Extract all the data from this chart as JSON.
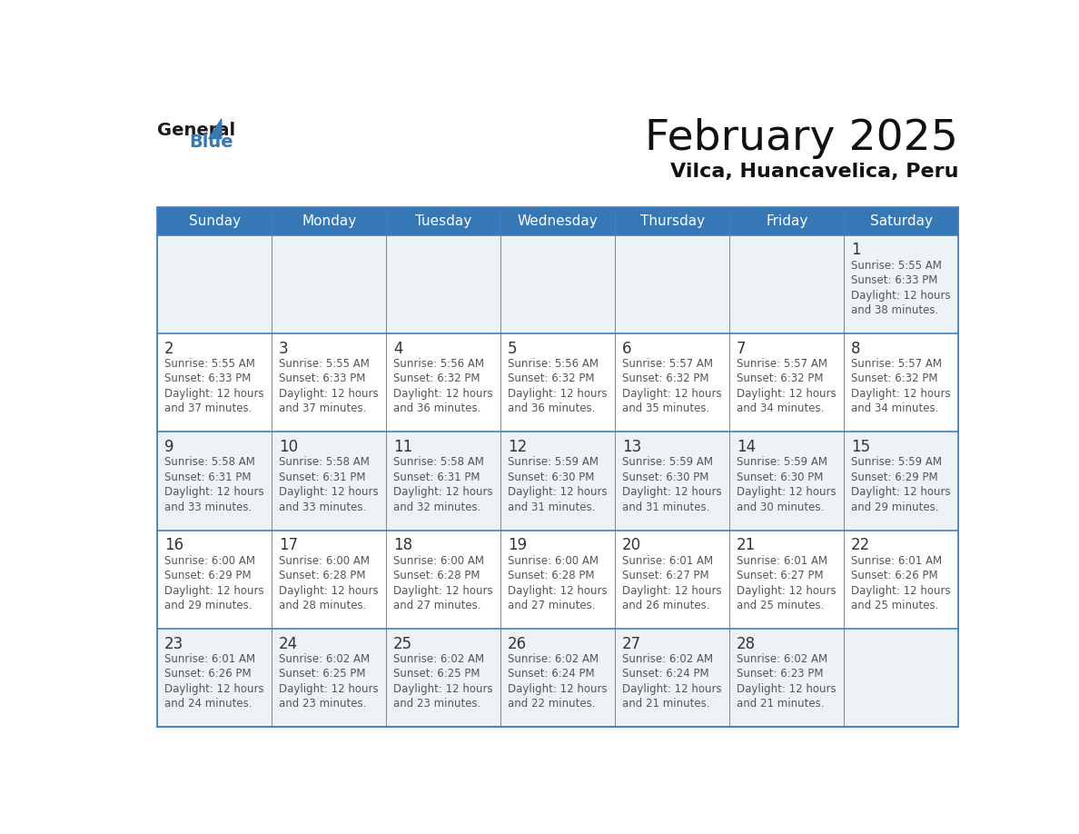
{
  "title": "February 2025",
  "subtitle": "Vilca, Huancavelica, Peru",
  "header_bg_color": "#3578b5",
  "header_text_color": "#ffffff",
  "row_bg_odd": "#edf2f7",
  "row_bg_even": "#ffffff",
  "border_color": "#4080bf",
  "day_names": [
    "Sunday",
    "Monday",
    "Tuesday",
    "Wednesday",
    "Thursday",
    "Friday",
    "Saturday"
  ],
  "days": [
    {
      "day": 1,
      "col": 6,
      "row": 0,
      "sunrise": "5:55 AM",
      "sunset": "6:33 PM",
      "daylight": "12 hours and 38 minutes."
    },
    {
      "day": 2,
      "col": 0,
      "row": 1,
      "sunrise": "5:55 AM",
      "sunset": "6:33 PM",
      "daylight": "12 hours and 37 minutes."
    },
    {
      "day": 3,
      "col": 1,
      "row": 1,
      "sunrise": "5:55 AM",
      "sunset": "6:33 PM",
      "daylight": "12 hours and 37 minutes."
    },
    {
      "day": 4,
      "col": 2,
      "row": 1,
      "sunrise": "5:56 AM",
      "sunset": "6:32 PM",
      "daylight": "12 hours and 36 minutes."
    },
    {
      "day": 5,
      "col": 3,
      "row": 1,
      "sunrise": "5:56 AM",
      "sunset": "6:32 PM",
      "daylight": "12 hours and 36 minutes."
    },
    {
      "day": 6,
      "col": 4,
      "row": 1,
      "sunrise": "5:57 AM",
      "sunset": "6:32 PM",
      "daylight": "12 hours and 35 minutes."
    },
    {
      "day": 7,
      "col": 5,
      "row": 1,
      "sunrise": "5:57 AM",
      "sunset": "6:32 PM",
      "daylight": "12 hours and 34 minutes."
    },
    {
      "day": 8,
      "col": 6,
      "row": 1,
      "sunrise": "5:57 AM",
      "sunset": "6:32 PM",
      "daylight": "12 hours and 34 minutes."
    },
    {
      "day": 9,
      "col": 0,
      "row": 2,
      "sunrise": "5:58 AM",
      "sunset": "6:31 PM",
      "daylight": "12 hours and 33 minutes."
    },
    {
      "day": 10,
      "col": 1,
      "row": 2,
      "sunrise": "5:58 AM",
      "sunset": "6:31 PM",
      "daylight": "12 hours and 33 minutes."
    },
    {
      "day": 11,
      "col": 2,
      "row": 2,
      "sunrise": "5:58 AM",
      "sunset": "6:31 PM",
      "daylight": "12 hours and 32 minutes."
    },
    {
      "day": 12,
      "col": 3,
      "row": 2,
      "sunrise": "5:59 AM",
      "sunset": "6:30 PM",
      "daylight": "12 hours and 31 minutes."
    },
    {
      "day": 13,
      "col": 4,
      "row": 2,
      "sunrise": "5:59 AM",
      "sunset": "6:30 PM",
      "daylight": "12 hours and 31 minutes."
    },
    {
      "day": 14,
      "col": 5,
      "row": 2,
      "sunrise": "5:59 AM",
      "sunset": "6:30 PM",
      "daylight": "12 hours and 30 minutes."
    },
    {
      "day": 15,
      "col": 6,
      "row": 2,
      "sunrise": "5:59 AM",
      "sunset": "6:29 PM",
      "daylight": "12 hours and 29 minutes."
    },
    {
      "day": 16,
      "col": 0,
      "row": 3,
      "sunrise": "6:00 AM",
      "sunset": "6:29 PM",
      "daylight": "12 hours and 29 minutes."
    },
    {
      "day": 17,
      "col": 1,
      "row": 3,
      "sunrise": "6:00 AM",
      "sunset": "6:28 PM",
      "daylight": "12 hours and 28 minutes."
    },
    {
      "day": 18,
      "col": 2,
      "row": 3,
      "sunrise": "6:00 AM",
      "sunset": "6:28 PM",
      "daylight": "12 hours and 27 minutes."
    },
    {
      "day": 19,
      "col": 3,
      "row": 3,
      "sunrise": "6:00 AM",
      "sunset": "6:28 PM",
      "daylight": "12 hours and 27 minutes."
    },
    {
      "day": 20,
      "col": 4,
      "row": 3,
      "sunrise": "6:01 AM",
      "sunset": "6:27 PM",
      "daylight": "12 hours and 26 minutes."
    },
    {
      "day": 21,
      "col": 5,
      "row": 3,
      "sunrise": "6:01 AM",
      "sunset": "6:27 PM",
      "daylight": "12 hours and 25 minutes."
    },
    {
      "day": 22,
      "col": 6,
      "row": 3,
      "sunrise": "6:01 AM",
      "sunset": "6:26 PM",
      "daylight": "12 hours and 25 minutes."
    },
    {
      "day": 23,
      "col": 0,
      "row": 4,
      "sunrise": "6:01 AM",
      "sunset": "6:26 PM",
      "daylight": "12 hours and 24 minutes."
    },
    {
      "day": 24,
      "col": 1,
      "row": 4,
      "sunrise": "6:02 AM",
      "sunset": "6:25 PM",
      "daylight": "12 hours and 23 minutes."
    },
    {
      "day": 25,
      "col": 2,
      "row": 4,
      "sunrise": "6:02 AM",
      "sunset": "6:25 PM",
      "daylight": "12 hours and 23 minutes."
    },
    {
      "day": 26,
      "col": 3,
      "row": 4,
      "sunrise": "6:02 AM",
      "sunset": "6:24 PM",
      "daylight": "12 hours and 22 minutes."
    },
    {
      "day": 27,
      "col": 4,
      "row": 4,
      "sunrise": "6:02 AM",
      "sunset": "6:24 PM",
      "daylight": "12 hours and 21 minutes."
    },
    {
      "day": 28,
      "col": 5,
      "row": 4,
      "sunrise": "6:02 AM",
      "sunset": "6:23 PM",
      "daylight": "12 hours and 21 minutes."
    }
  ],
  "num_rows": 5,
  "num_cols": 7,
  "logo_text_general": "General",
  "logo_text_blue": "Blue",
  "logo_triangle_color": "#3578b5",
  "text_color": "#333333",
  "small_text_color": "#555555",
  "fig_width": 11.88,
  "fig_height": 9.18,
  "dpi": 100
}
